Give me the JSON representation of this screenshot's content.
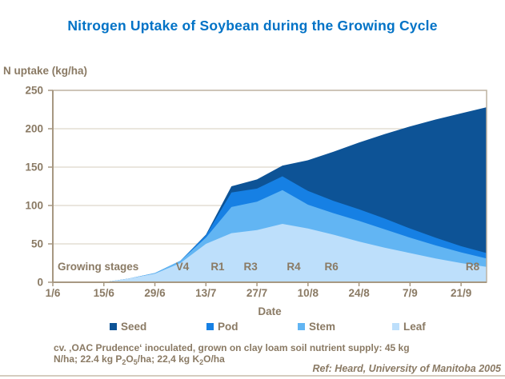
{
  "slide": {
    "title": "Nitrogen Uptake of Soybean during the Growing Cycle",
    "footnote_line1": "cv. ‚OAC Prudence‘ inoculated, grown on clay loam soil nutrient supply: 45 kg",
    "footnote_line2_parts": [
      {
        "t": "N/ha; 22.4 kg P",
        "sub": false
      },
      {
        "t": "2",
        "sub": true
      },
      {
        "t": "O",
        "sub": false
      },
      {
        "t": "5",
        "sub": true
      },
      {
        "t": "/ha; 22,4 kg K",
        "sub": false
      },
      {
        "t": "2",
        "sub": true
      },
      {
        "t": "O/ha",
        "sub": false
      }
    ],
    "reference": "Ref: Heard, University of Manitoba 2005"
  },
  "colors": {
    "title": "#0072C6",
    "text": "#8A7A64",
    "axis": "#A79882",
    "frame": "#BDB2A0",
    "gridline": "#DDD6CB",
    "divider": "#D5CCBF",
    "seed": "#0D5396",
    "pod": "#1680E4",
    "stem": "#62B5F3",
    "leaf": "#BDDFFB"
  },
  "chart_data": {
    "type": "area",
    "stacked": true,
    "title": "Nitrogen Uptake of Soybean during the Growing Cycle",
    "ylabel": "N uptake (kg/ha)",
    "xlabel": "Date",
    "ylim": [
      0,
      250
    ],
    "y_ticks": [
      0,
      50,
      100,
      150,
      200,
      250
    ],
    "grid": true,
    "legend_position": "bottom",
    "x": [
      "1/6",
      "8/6",
      "15/6",
      "22/6",
      "29/6",
      "6/7",
      "13/7",
      "20/7",
      "27/7",
      "3/8",
      "10/8",
      "17/8",
      "24/8",
      "31/8",
      "7/9",
      "14/9",
      "21/9",
      "28/9"
    ],
    "x_tick_labels": [
      "1/6",
      "15/6",
      "29/6",
      "13/7",
      "27/7",
      "10/8",
      "24/8",
      "7/9",
      "21/9"
    ],
    "series": [
      {
        "name": "Leaf",
        "color_key": "leaf",
        "values": [
          0,
          0,
          0,
          5,
          11,
          25,
          50,
          64,
          68,
          76,
          70,
          62,
          53,
          45,
          38,
          31,
          25,
          20
        ]
      },
      {
        "name": "Stem",
        "color_key": "stem",
        "values": [
          0,
          0,
          0,
          0,
          1,
          3,
          8,
          34,
          37,
          44,
          31,
          28,
          27,
          24,
          20,
          17,
          14,
          11
        ]
      },
      {
        "name": "Pod",
        "color_key": "pod",
        "values": [
          0,
          0,
          0,
          0,
          0,
          0,
          3,
          19,
          17,
          18,
          18,
          16,
          15,
          14,
          12,
          10,
          8,
          7
        ]
      },
      {
        "name": "Seed",
        "color_key": "seed",
        "values": [
          0,
          0,
          0,
          0,
          0,
          0,
          1,
          8,
          12,
          14,
          40,
          64,
          87,
          110,
          133,
          154,
          173,
          190
        ]
      }
    ],
    "legend_order": [
      "Seed",
      "Pod",
      "Stem",
      "Leaf"
    ],
    "growing_stages": {
      "label": "Growing stages",
      "stages": [
        {
          "name": "V4",
          "xi": 5.08
        },
        {
          "name": "R1",
          "xi": 6.46
        },
        {
          "name": "R3",
          "xi": 7.75
        },
        {
          "name": "R4",
          "xi": 9.44
        },
        {
          "name": "R6",
          "xi": 10.92
        },
        {
          "name": "R8",
          "xi": 16.45
        }
      ]
    }
  }
}
